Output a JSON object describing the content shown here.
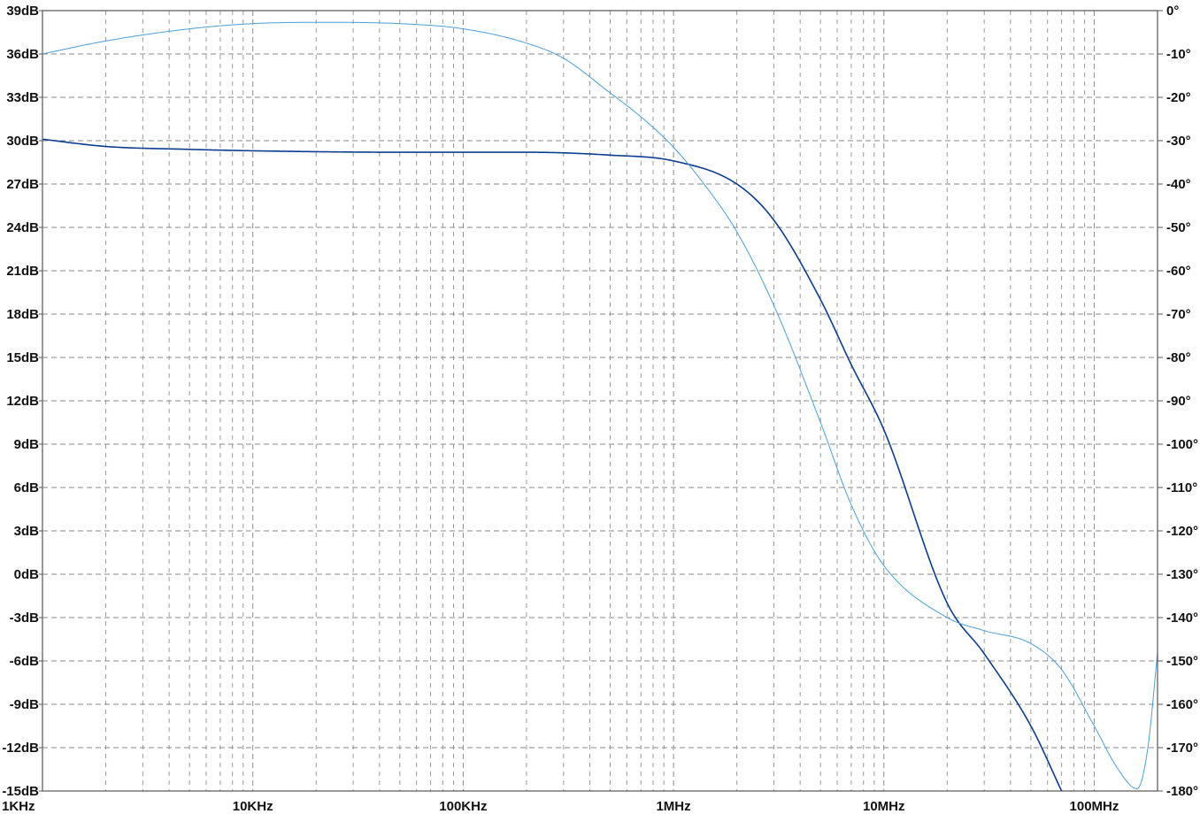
{
  "chart_data": {
    "type": "line",
    "title": "",
    "x_scale": "log",
    "xlim_hz": [
      1000,
      200000000
    ],
    "x_ticks": [
      {
        "label": "1KHz",
        "value": 1000
      },
      {
        "label": "10KHz",
        "value": 10000
      },
      {
        "label": "100KHz",
        "value": 100000
      },
      {
        "label": "1MHz",
        "value": 1000000
      },
      {
        "label": "10MHz",
        "value": 10000000
      },
      {
        "label": "100MHz",
        "value": 100000000
      }
    ],
    "y_left": {
      "unit": "dB",
      "lim": [
        -15,
        39
      ],
      "ticks": [
        "39dB",
        "36dB",
        "33dB",
        "30dB",
        "27dB",
        "24dB",
        "21dB",
        "18dB",
        "15dB",
        "12dB",
        "9dB",
        "6dB",
        "3dB",
        "0dB",
        "-3dB",
        "-6dB",
        "-9dB",
        "-12dB",
        "-15dB"
      ]
    },
    "y_right": {
      "unit": "°",
      "lim": [
        -180,
        0
      ],
      "ticks": [
        "0°",
        "-10°",
        "-20°",
        "-30°",
        "-40°",
        "-50°",
        "-60°",
        "-70°",
        "-80°",
        "-90°",
        "-100°",
        "-110°",
        "-120°",
        "-130°",
        "-140°",
        "-150°",
        "-160°",
        "-170°",
        "-180°"
      ]
    },
    "grid": true,
    "series": [
      {
        "axis": "left",
        "style": "solid",
        "color": "#0b3d91",
        "x": [
          1000,
          2000,
          5000,
          10000,
          50000,
          100000,
          200000,
          500000,
          1000000,
          2000000,
          3000000,
          5000000,
          7000000,
          10000000,
          20000000,
          30000000,
          50000000,
          70000000
        ],
        "y": [
          30.1,
          29.6,
          29.4,
          29.3,
          29.2,
          29.2,
          29.2,
          29.0,
          28.6,
          27.0,
          24.5,
          19.0,
          14.5,
          10.0,
          -2.0,
          -5.5,
          -10.5,
          -15.0
        ]
      },
      {
        "axis": "right",
        "style": "thin",
        "color": "#4a9fd5",
        "x": [
          1000,
          2000,
          5000,
          10000,
          20000,
          50000,
          100000,
          200000,
          300000,
          500000,
          700000,
          1000000,
          1500000,
          2000000,
          3000000,
          5000000,
          7000000,
          10000000,
          20000000,
          30000000,
          50000000,
          70000000,
          100000000,
          130000000,
          160000000,
          180000000,
          200000000
        ],
        "y": [
          -10.0,
          -7.0,
          -4.2,
          -3.0,
          -2.7,
          -3.0,
          -4.2,
          -7.5,
          -11.0,
          -19.0,
          -24.5,
          -31.5,
          -42.0,
          -51.0,
          -68.0,
          -95.0,
          -114.0,
          -128.0,
          -140.0,
          -143.0,
          -146.0,
          -152.0,
          -165.0,
          -175.0,
          -179.5,
          -170.0,
          -148.0
        ]
      }
    ]
  }
}
